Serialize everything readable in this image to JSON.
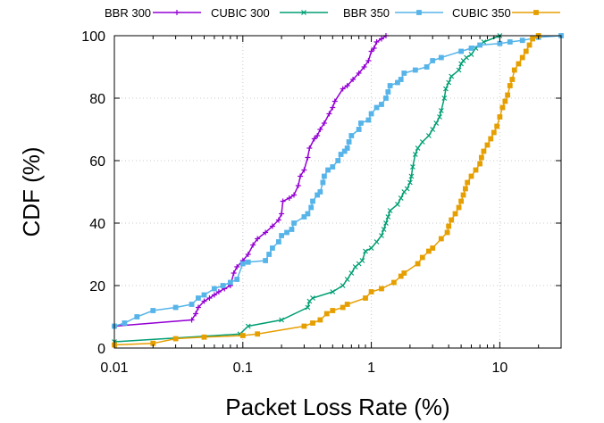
{
  "chart_data": {
    "type": "line",
    "xlabel": "Packet Loss Rate (%)",
    "ylabel": "CDF (%)",
    "x_scale": "log",
    "xlim": [
      0.01,
      30
    ],
    "ylim": [
      0,
      100
    ],
    "x_ticks": [
      0.01,
      0.1,
      1,
      10
    ],
    "x_tick_labels": [
      "0.01",
      "0.1",
      "1",
      "10"
    ],
    "y_ticks": [
      0,
      20,
      40,
      60,
      80,
      100
    ],
    "y_tick_labels": [
      "0",
      "20",
      "40",
      "60",
      "80",
      "100"
    ],
    "grid": true,
    "legend_position": "top",
    "series": [
      {
        "name": "BBR 300",
        "color": "#9400d3",
        "marker": "plus",
        "points": [
          [
            0.01,
            7
          ],
          [
            0.04,
            9
          ],
          [
            0.043,
            11
          ],
          [
            0.045,
            13
          ],
          [
            0.05,
            15
          ],
          [
            0.055,
            16
          ],
          [
            0.06,
            17
          ],
          [
            0.065,
            18
          ],
          [
            0.072,
            19
          ],
          [
            0.08,
            20
          ],
          [
            0.085,
            24
          ],
          [
            0.09,
            26
          ],
          [
            0.1,
            28
          ],
          [
            0.11,
            30
          ],
          [
            0.12,
            33
          ],
          [
            0.13,
            35
          ],
          [
            0.15,
            37
          ],
          [
            0.17,
            39
          ],
          [
            0.19,
            41
          ],
          [
            0.2,
            43
          ],
          [
            0.205,
            47
          ],
          [
            0.23,
            48
          ],
          [
            0.25,
            49
          ],
          [
            0.27,
            52
          ],
          [
            0.28,
            55
          ],
          [
            0.3,
            57
          ],
          [
            0.32,
            61
          ],
          [
            0.33,
            64
          ],
          [
            0.36,
            67
          ],
          [
            0.38,
            68
          ],
          [
            0.4,
            70
          ],
          [
            0.43,
            72
          ],
          [
            0.47,
            75
          ],
          [
            0.5,
            77
          ],
          [
            0.52,
            79
          ],
          [
            0.6,
            83
          ],
          [
            0.65,
            84
          ],
          [
            0.72,
            86
          ],
          [
            0.8,
            88
          ],
          [
            0.88,
            90
          ],
          [
            0.95,
            92
          ],
          [
            1.0,
            95
          ],
          [
            1.05,
            96
          ],
          [
            1.1,
            98
          ],
          [
            1.2,
            99
          ],
          [
            1.3,
            100
          ]
        ]
      },
      {
        "name": "CUBIC 300",
        "color": "#009e73",
        "marker": "cross",
        "points": [
          [
            0.01,
            2
          ],
          [
            0.095,
            4.5
          ],
          [
            0.11,
            7
          ],
          [
            0.2,
            9
          ],
          [
            0.32,
            13
          ],
          [
            0.33,
            15
          ],
          [
            0.35,
            16
          ],
          [
            0.5,
            18
          ],
          [
            0.6,
            20
          ],
          [
            0.65,
            22
          ],
          [
            0.7,
            24
          ],
          [
            0.75,
            26
          ],
          [
            0.8,
            27
          ],
          [
            0.85,
            28
          ],
          [
            0.9,
            31
          ],
          [
            1.0,
            32
          ],
          [
            1.1,
            34
          ],
          [
            1.2,
            36
          ],
          [
            1.25,
            38
          ],
          [
            1.3,
            40
          ],
          [
            1.35,
            42
          ],
          [
            1.4,
            44
          ],
          [
            1.6,
            46
          ],
          [
            1.7,
            48
          ],
          [
            1.8,
            50
          ],
          [
            1.9,
            51
          ],
          [
            2.0,
            53
          ],
          [
            2.05,
            55
          ],
          [
            2.1,
            58
          ],
          [
            2.2,
            62
          ],
          [
            2.3,
            64
          ],
          [
            2.5,
            66
          ],
          [
            2.8,
            68
          ],
          [
            3.0,
            70
          ],
          [
            3.2,
            72
          ],
          [
            3.4,
            74
          ],
          [
            3.5,
            76
          ],
          [
            3.7,
            80
          ],
          [
            3.8,
            83
          ],
          [
            4.0,
            85
          ],
          [
            4.2,
            87
          ],
          [
            4.8,
            89
          ],
          [
            5.0,
            91
          ],
          [
            5.2,
            92
          ],
          [
            5.5,
            93
          ],
          [
            6.0,
            94
          ],
          [
            6.5,
            96
          ],
          [
            7.5,
            98
          ],
          [
            10,
            100
          ]
        ]
      },
      {
        "name": "BBR 350",
        "color": "#56b4e9",
        "marker": "square",
        "points": [
          [
            0.01,
            7
          ],
          [
            0.012,
            8
          ],
          [
            0.015,
            10
          ],
          [
            0.02,
            12
          ],
          [
            0.03,
            13
          ],
          [
            0.04,
            14
          ],
          [
            0.045,
            16
          ],
          [
            0.05,
            17
          ],
          [
            0.06,
            19
          ],
          [
            0.07,
            20
          ],
          [
            0.08,
            21
          ],
          [
            0.09,
            22
          ],
          [
            0.1,
            27
          ],
          [
            0.11,
            27.5
          ],
          [
            0.15,
            28
          ],
          [
            0.16,
            30
          ],
          [
            0.17,
            32
          ],
          [
            0.19,
            34
          ],
          [
            0.2,
            36
          ],
          [
            0.22,
            37
          ],
          [
            0.24,
            38
          ],
          [
            0.25,
            40
          ],
          [
            0.3,
            42
          ],
          [
            0.32,
            43
          ],
          [
            0.34,
            45
          ],
          [
            0.35,
            47
          ],
          [
            0.38,
            49
          ],
          [
            0.4,
            50
          ],
          [
            0.42,
            53
          ],
          [
            0.43,
            55
          ],
          [
            0.46,
            57
          ],
          [
            0.5,
            58
          ],
          [
            0.55,
            60
          ],
          [
            0.58,
            62
          ],
          [
            0.62,
            63
          ],
          [
            0.65,
            64
          ],
          [
            0.67,
            66
          ],
          [
            0.7,
            68
          ],
          [
            0.8,
            70
          ],
          [
            0.83,
            72
          ],
          [
            0.95,
            73
          ],
          [
            1.0,
            75
          ],
          [
            1.1,
            77
          ],
          [
            1.2,
            78
          ],
          [
            1.3,
            80
          ],
          [
            1.35,
            82
          ],
          [
            1.4,
            84
          ],
          [
            1.6,
            85
          ],
          [
            1.7,
            86
          ],
          [
            1.8,
            88
          ],
          [
            2.2,
            89
          ],
          [
            2.7,
            90
          ],
          [
            3.0,
            92
          ],
          [
            3.5,
            93
          ],
          [
            5.0,
            95
          ],
          [
            6.0,
            96
          ],
          [
            7.0,
            97
          ],
          [
            10,
            97.5
          ],
          [
            12,
            98
          ],
          [
            15,
            98.5
          ],
          [
            20,
            99.5
          ],
          [
            30,
            100
          ]
        ]
      },
      {
        "name": "CUBIC 350",
        "color": "#e69f00",
        "marker": "square",
        "points": [
          [
            0.01,
            1
          ],
          [
            0.02,
            1.5
          ],
          [
            0.03,
            3
          ],
          [
            0.05,
            3.5
          ],
          [
            0.1,
            4
          ],
          [
            0.13,
            4.5
          ],
          [
            0.3,
            7
          ],
          [
            0.35,
            8
          ],
          [
            0.4,
            9
          ],
          [
            0.45,
            11
          ],
          [
            0.5,
            12
          ],
          [
            0.6,
            13
          ],
          [
            0.65,
            14
          ],
          [
            0.9,
            16
          ],
          [
            1.0,
            18
          ],
          [
            1.2,
            19
          ],
          [
            1.5,
            21
          ],
          [
            1.7,
            23
          ],
          [
            1.8,
            24
          ],
          [
            2.3,
            27
          ],
          [
            2.5,
            29
          ],
          [
            2.8,
            31
          ],
          [
            3.0,
            32
          ],
          [
            3.5,
            35
          ],
          [
            3.9,
            37
          ],
          [
            4.0,
            39
          ],
          [
            4.2,
            41
          ],
          [
            4.5,
            43
          ],
          [
            4.8,
            45
          ],
          [
            5.0,
            47
          ],
          [
            5.2,
            49
          ],
          [
            5.4,
            51
          ],
          [
            5.6,
            53
          ],
          [
            6.0,
            55
          ],
          [
            6.5,
            57
          ],
          [
            7.0,
            59
          ],
          [
            7.2,
            61
          ],
          [
            7.5,
            63
          ],
          [
            8.0,
            65
          ],
          [
            8.5,
            67
          ],
          [
            9.0,
            69
          ],
          [
            9.5,
            71
          ],
          [
            10,
            74
          ],
          [
            10.5,
            77
          ],
          [
            11,
            79
          ],
          [
            11.5,
            81
          ],
          [
            12,
            84
          ],
          [
            12.5,
            86
          ],
          [
            13,
            89
          ],
          [
            14,
            91
          ],
          [
            15,
            93
          ],
          [
            16,
            95
          ],
          [
            17,
            97
          ],
          [
            18,
            99
          ],
          [
            20,
            100
          ]
        ]
      }
    ]
  }
}
